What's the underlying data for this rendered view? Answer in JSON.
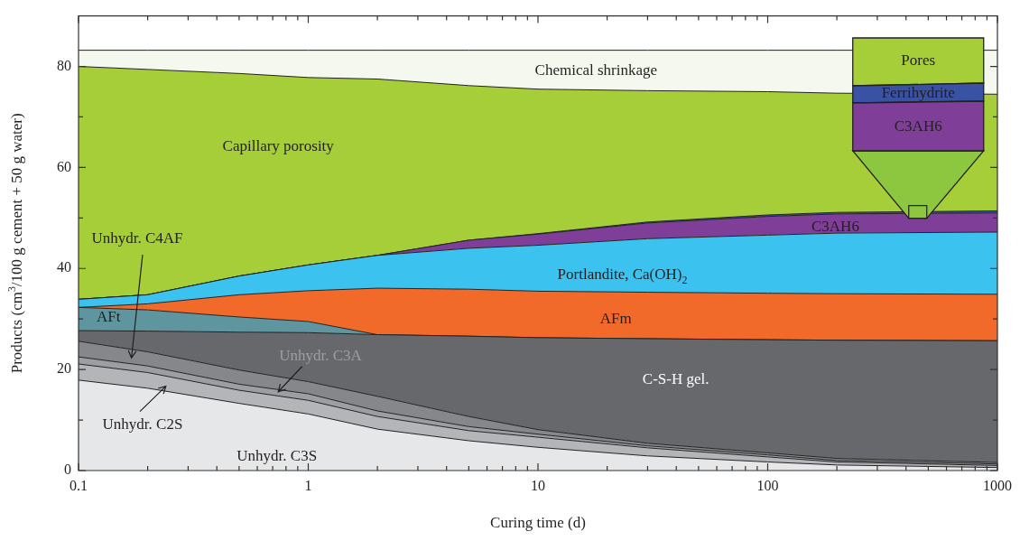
{
  "chart_data": {
    "type": "area",
    "stacked": true,
    "log": "x",
    "xlabel": "Curing time (d)",
    "ylabel": "Products (cm$^{3}$/100 g cement + 50 g water)",
    "x": [
      0.1,
      0.2,
      0.5,
      1,
      2,
      5,
      10,
      30,
      100,
      200,
      1000
    ],
    "xlim": [
      0.1,
      1000
    ],
    "xticks": [
      0.1,
      {
        "value": 0.2,
        "label": null
      },
      {
        "value": 0.3,
        "label": null
      },
      {
        "value": 0.4,
        "label": null
      },
      {
        "value": 0.5,
        "label": null
      },
      {
        "value": 0.6,
        "label": null
      },
      {
        "value": 0.7,
        "label": null
      },
      {
        "value": 0.8,
        "label": null
      },
      {
        "value": 0.9,
        "label": null
      },
      1,
      {
        "value": 2,
        "label": null
      },
      {
        "value": 3,
        "label": null
      },
      {
        "value": 4,
        "label": null
      },
      {
        "value": 5,
        "label": null
      },
      {
        "value": 6,
        "label": null
      },
      {
        "value": 7,
        "label": null
      },
      {
        "value": 8,
        "label": null
      },
      {
        "value": 9,
        "label": null
      },
      10,
      {
        "value": 20,
        "label": null
      },
      {
        "value": 30,
        "label": null
      },
      {
        "value": 40,
        "label": null
      },
      {
        "value": 50,
        "label": null
      },
      {
        "value": 60,
        "label": null
      },
      {
        "value": 70,
        "label": null
      },
      {
        "value": 80,
        "label": null
      },
      {
        "value": 90,
        "label": null
      },
      100,
      {
        "value": 200,
        "label": null
      },
      {
        "value": 300,
        "label": null
      },
      {
        "value": 400,
        "label": null
      },
      {
        "value": 500,
        "label": null
      },
      {
        "value": 600,
        "label": null
      },
      {
        "value": 700,
        "label": null
      },
      {
        "value": 800,
        "label": null
      },
      {
        "value": 900,
        "label": null
      },
      1000
    ],
    "ylim": [
      0,
      90
    ],
    "yticks": [
      0,
      {
        "value": 10,
        "label": null
      },
      20,
      {
        "value": 30,
        "label": null
      },
      40,
      {
        "value": 50,
        "label": null
      },
      60,
      {
        "value": 70,
        "label": null
      },
      80
    ],
    "series": [
      {
        "name": "Unhydr. C3S",
        "color": "#e6e7e9",
        "values": [
          17.9,
          16.3,
          13.3,
          11.2,
          8.2,
          5.9,
          4.6,
          2.9,
          1.7,
          1.1,
          0.6
        ]
      },
      {
        "name": "Unhydr. C2S",
        "color": "#b3b5b9",
        "values": [
          3.2,
          3.1,
          2.6,
          2.7,
          2.5,
          2.0,
          2.0,
          1.6,
          1.0,
          0.6,
          0.4
        ]
      },
      {
        "name": "Unhydr. C3A",
        "color": "#9c9ea2",
        "values": [
          1.4,
          1.3,
          1.2,
          1.3,
          1.1,
          0.8,
          0.6,
          0.4,
          0.4,
          0.3,
          0.3
        ]
      },
      {
        "name": "Unhydr. C4AF",
        "color": "#85878b",
        "values": [
          3.1,
          2.8,
          2.8,
          2.4,
          2.9,
          2.0,
          0.9,
          0.5,
          0.4,
          0.4,
          0.3
        ]
      },
      {
        "name": "C-S-H gel.",
        "color": "#67686c",
        "values": [
          2.1,
          4.1,
          7.5,
          9.7,
          12.2,
          15.9,
          18.2,
          20.7,
          22.4,
          23.4,
          24.1
        ]
      },
      {
        "name": "AFt",
        "color": "#5e959e",
        "values": [
          4.6,
          4.2,
          3.0,
          2.2,
          0,
          0,
          0,
          0,
          0,
          0,
          0
        ]
      },
      {
        "name": "AFm",
        "color": "#f26a2a",
        "values": [
          0,
          1.2,
          4.4,
          6.1,
          9.2,
          9.3,
          9.2,
          9.2,
          9.2,
          9.2,
          9.2
        ]
      },
      {
        "name": "Portlandite, Ca(OH)$_{2}$",
        "color": "#3bc2ef",
        "values": [
          1.6,
          1.8,
          3.7,
          5.1,
          6.5,
          8.1,
          9.1,
          10.6,
          11.5,
          12.0,
          12.3
        ]
      },
      {
        "name": "C3AH6",
        "color": "#7f3f98",
        "values": [
          0,
          0,
          0,
          0,
          0,
          1.6,
          2.2,
          3.1,
          3.7,
          3.8,
          3.8
        ]
      },
      {
        "name": "Ferrihydrite",
        "color": "#3a52a4",
        "values": [
          0,
          0,
          0,
          0,
          0,
          0,
          0.1,
          0.2,
          0.3,
          0.3,
          0.4
        ]
      },
      {
        "name": "Capillary porosity",
        "color": "#a6ce39",
        "values": [
          46.1,
          44.6,
          40.1,
          37.1,
          34.9,
          30.6,
          28.6,
          26.0,
          24.4,
          23.6,
          23.1
        ]
      },
      {
        "name": "Chemical shrinkage",
        "color": "#f4f8ee",
        "values": [
          3.2,
          3.8,
          4.6,
          5.4,
          5.7,
          7.0,
          7.7,
          8.0,
          8.2,
          8.5,
          8.7
        ]
      }
    ],
    "annotations": [
      "Pores"
    ]
  }
}
